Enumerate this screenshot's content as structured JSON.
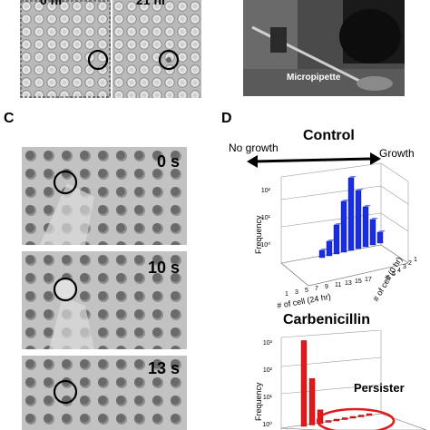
{
  "panel_a": {
    "time_labels": [
      "0 hr",
      "21 hr"
    ]
  },
  "panel_b": {
    "photo_label": "Micropipette"
  },
  "panel_c": {
    "letter": "C",
    "frames": [
      "0 s",
      "10 s",
      "13 s"
    ]
  },
  "panel_d": {
    "letter": "D",
    "top_title": "Control",
    "no_growth": "No growth",
    "growth": "Growth",
    "bottom_title": "Carbenicillin",
    "persister": "Persister",
    "ylabel": "Frequency",
    "xlabel_24": "# of cell (24 hr)",
    "xlabel_0": "# of cell (0 hr)",
    "x_ticks": [
      "1",
      "3",
      "5",
      "7",
      "9",
      "11",
      "13",
      "15",
      "17"
    ],
    "z_ticks": [
      "6",
      "5",
      "4",
      "3",
      "2",
      "1"
    ],
    "y_ticks_top": [
      "10²",
      "10¹",
      "10⁰"
    ],
    "y_ticks_bottom": [
      "10³",
      "10²",
      "10¹",
      "10⁰"
    ],
    "colors": {
      "control": "#1a2ee0",
      "carbenicillin": "#e01a1a",
      "circle": "#e01a1a"
    }
  },
  "chart_data": [
    {
      "type": "bar",
      "title": "Control",
      "xlabel": "# of cell (24 hr)",
      "ylabel": "Frequency",
      "categories": [
        "1",
        "3",
        "5",
        "7",
        "9",
        "11",
        "13",
        "15",
        "17"
      ],
      "series": [
        {
          "values": [
            2,
            4,
            8,
            14,
            20,
            16,
            11,
            7,
            3
          ]
        }
      ]
    },
    {
      "type": "bar",
      "title": "Carbenicillin",
      "xlabel": "# of cell (24 hr)",
      "ylabel": "Frequency",
      "categories": [
        "1",
        "3",
        "5",
        "7",
        "9",
        "11",
        "13",
        "15",
        "17"
      ],
      "series": [
        {
          "values": [
            900,
            40,
            3,
            1,
            1,
            1,
            1,
            1,
            1
          ]
        }
      ]
    }
  ]
}
